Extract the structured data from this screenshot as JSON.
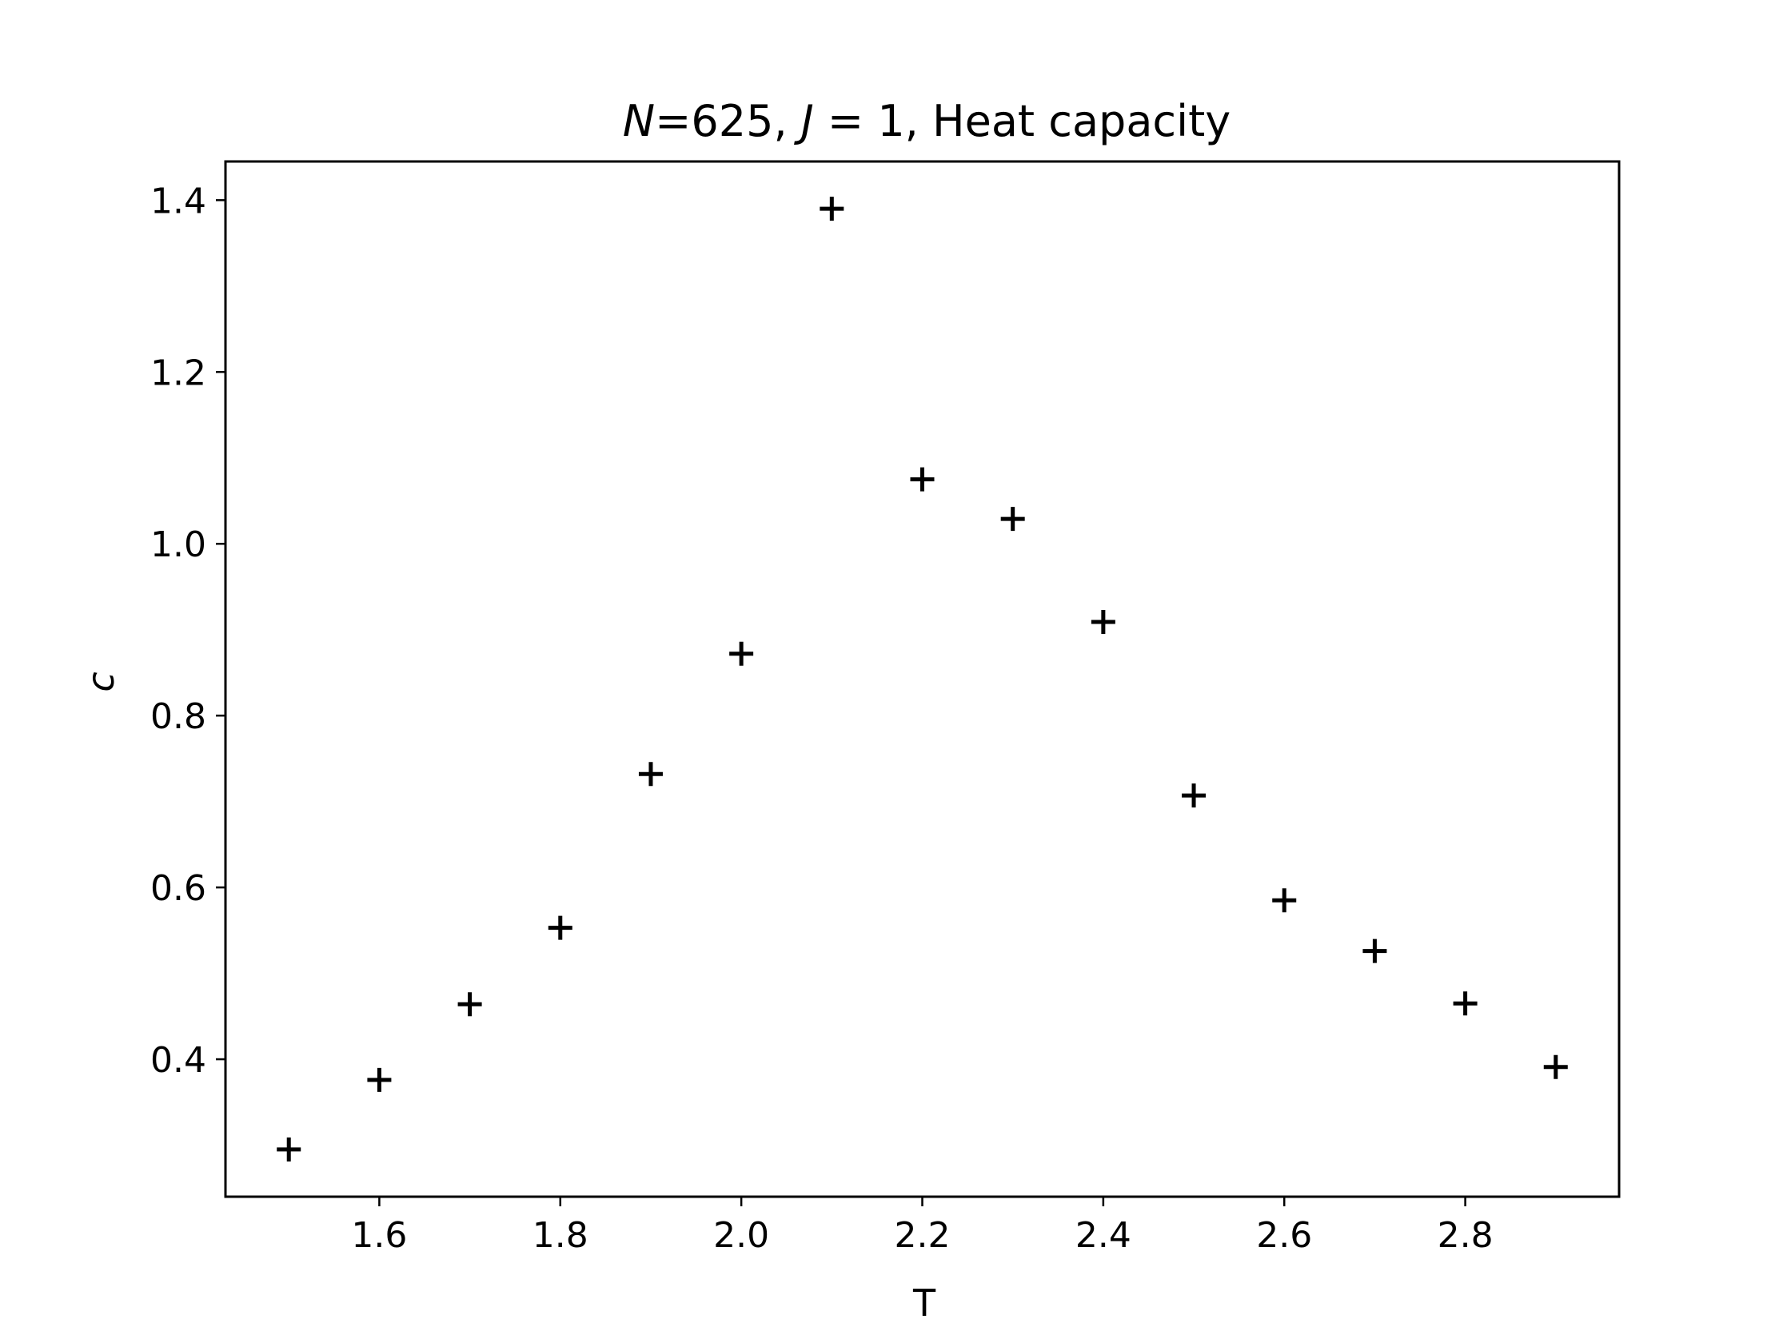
{
  "chart_data": {
    "type": "scatter",
    "title": {
      "n_var": "N",
      "n_value": "=625, ",
      "j_var": "J",
      "j_value": " = 1, Heat capacity"
    },
    "xlabel": "T",
    "ylabel": "c",
    "xlim": [
      1.43,
      2.97
    ],
    "ylim": [
      0.24,
      1.445
    ],
    "xticks": [
      1.6,
      1.8,
      2.0,
      2.2,
      2.4,
      2.6,
      2.8
    ],
    "yticks": [
      0.4,
      0.6,
      0.8,
      1.0,
      1.2,
      1.4
    ],
    "grid": false,
    "marker": "+",
    "colors": {
      "marker": "#000000",
      "axes": "#000000"
    },
    "series": [
      {
        "x": [
          1.5,
          1.6,
          1.7,
          1.8,
          1.9,
          2.0,
          2.1,
          2.2,
          2.3,
          2.4,
          2.5,
          2.6,
          2.7,
          2.8,
          2.9
        ],
        "y": [
          0.295,
          0.376,
          0.464,
          0.553,
          0.732,
          0.872,
          1.39,
          1.075,
          1.029,
          0.909,
          0.707,
          0.585,
          0.526,
          0.465,
          0.391
        ]
      }
    ]
  }
}
